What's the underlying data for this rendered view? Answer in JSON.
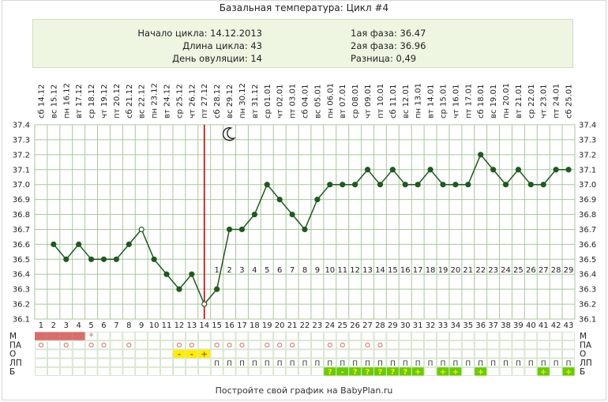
{
  "title": "Базальная температура: Цикл #4",
  "info": {
    "cycle_start": "Начало цикла: 14.12.2013",
    "cycle_length": "Длина цикла: 43",
    "ovulation_day": "День овуляции: 14",
    "phase1": "1ая фаза: 36.47",
    "phase2": "2ая фаза: 36.96",
    "difference": "Разница: 0,49"
  },
  "footer": "Постройте свой график на BabyPlan.ru",
  "colors": {
    "line": "#1f5a1f",
    "grid": "#a8c79a",
    "ovulation_line": "#cc0000",
    "menses": "#d96c6c",
    "yellow": "#ffee00",
    "green": "#66cc00",
    "phase_numbers": "#b04a4a"
  },
  "chart_data": {
    "type": "line",
    "ylim": [
      36.1,
      37.4
    ],
    "y_ticks": [
      "37.4",
      "37.3",
      "37.2",
      "37.1",
      "37.0",
      "36.9",
      "36.8",
      "36.7",
      "36.6",
      "36.5",
      "36.4",
      "36.3",
      "36.2",
      "36.1"
    ],
    "cycle_days": [
      "1",
      "2",
      "3",
      "4",
      "5",
      "6",
      "7",
      "8",
      "9",
      "10",
      "11",
      "12",
      "13",
      "14",
      "15",
      "16",
      "17",
      "18",
      "19",
      "20",
      "21",
      "22",
      "23",
      "24",
      "25",
      "26",
      "27",
      "28",
      "29",
      "30",
      "31",
      "32",
      "33",
      "34",
      "35",
      "36",
      "37",
      "38",
      "39",
      "40",
      "41",
      "42",
      "43"
    ],
    "dates": [
      "сб 14.12",
      "вс 15.12",
      "пн 16.12",
      "вт 17.12",
      "ср 18.12",
      "чт 19.12",
      "пт 20.12",
      "сб 21.12",
      "вс 22.12",
      "пн 23.12",
      "вт 24.12",
      "ср 25.12",
      "чт 26.12",
      "пт 27.12",
      "сб 28.12",
      "вс 29.12",
      "пн 30.12",
      "вт 31.12",
      "ср 01.01",
      "чт 02.01",
      "пт 03.01",
      "сб 04.01",
      "вс 05.01",
      "пн 06.01",
      "вт 07.01",
      "ср 08.01",
      "чт 09.01",
      "пт 10.01",
      "сб 11.01",
      "вс 12.01",
      "пн 13.01",
      "вт 14.01",
      "ср 15.01",
      "чт 16.01",
      "пт 17.01",
      "сб 18.01",
      "вс 19.01",
      "пн 20.01",
      "вт 21.01",
      "ср 22.01",
      "чт 23.01",
      "пт 24.01",
      "сб 25.01"
    ],
    "values": [
      null,
      36.6,
      36.5,
      36.6,
      36.5,
      36.5,
      36.5,
      36.6,
      36.7,
      36.5,
      36.4,
      36.3,
      36.4,
      36.2,
      36.3,
      36.7,
      36.7,
      36.8,
      37.0,
      36.9,
      36.8,
      36.7,
      36.9,
      37.0,
      37.0,
      37.0,
      37.1,
      37.0,
      37.1,
      37.0,
      37.0,
      37.1,
      37.0,
      37.0,
      37.0,
      37.2,
      37.1,
      37.0,
      37.1,
      37.0,
      37.0,
      37.1,
      37.1
    ],
    "open_markers_days": [
      9,
      14
    ],
    "ovulation_day": 14,
    "moon_day": 16,
    "luteal_phase_numbers": [
      "1",
      "2",
      "3",
      "4",
      "5",
      "6",
      "7",
      "8",
      "9",
      "10",
      "11",
      "12",
      "13",
      "14",
      "15",
      "16",
      "17",
      "18",
      "19",
      "20",
      "21",
      "22",
      "23",
      "24",
      "25",
      "26",
      "27",
      "28",
      "29"
    ],
    "luteal_start_day": 15,
    "row_labels": [
      "М",
      "ПА",
      "О",
      "ЛП",
      "Б"
    ],
    "rows": {
      "M_menses_days": [
        1,
        2,
        3,
        4
      ],
      "M_star_day": 5,
      "M_star": "*",
      "PA_symbol": "○",
      "PA_days": [
        1,
        3,
        5,
        6,
        8,
        12,
        13,
        15,
        16,
        17,
        19,
        20,
        21,
        24,
        25,
        27,
        28
      ],
      "O_days": [
        12,
        13,
        14
      ],
      "O_symbols": [
        "-",
        "-",
        "+"
      ],
      "LP_symbol": "П",
      "LP_days": [
        15,
        16,
        17,
        18,
        19,
        20,
        21,
        22,
        23,
        24,
        25,
        26,
        27,
        28,
        29,
        30,
        31,
        32,
        33,
        34,
        35,
        36,
        37,
        38,
        39,
        40,
        41,
        42,
        43
      ],
      "B_days": [
        24,
        25,
        26,
        27,
        28,
        29,
        30,
        31,
        33,
        34,
        36,
        41,
        43
      ],
      "B_symbols": [
        "?",
        "-",
        "?",
        "?",
        "?",
        "?",
        "?",
        "+",
        "+",
        "+",
        "+",
        "+",
        "+"
      ]
    }
  }
}
